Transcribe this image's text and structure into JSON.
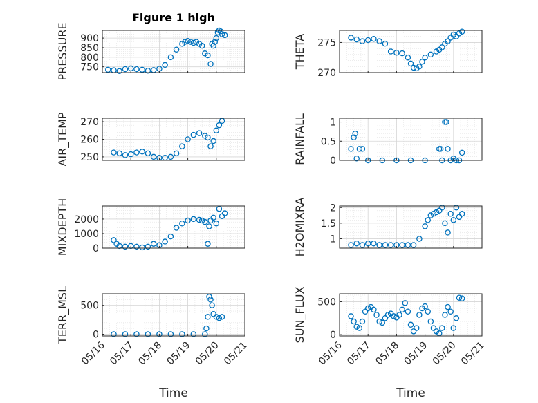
{
  "figure": {
    "title": "Figure 1 high",
    "xlabel": "Time"
  },
  "chart_data": [
    {
      "type": "scatter",
      "ylabel": "PRESSURE",
      "ylim": [
        720,
        940
      ],
      "yticks": [
        750,
        800,
        850,
        900
      ],
      "color": "#0072bd",
      "x": [
        0.2,
        0.4,
        0.6,
        0.8,
        1.0,
        1.2,
        1.4,
        1.6,
        1.8,
        2.0,
        2.2,
        2.4,
        2.6,
        2.8,
        2.9,
        3.0,
        3.1,
        3.2,
        3.3,
        3.4,
        3.5,
        3.6,
        3.7,
        3.8,
        3.85,
        3.9,
        3.95,
        4.0,
        4.05,
        4.1,
        4.15,
        4.2,
        4.3
      ],
      "y": [
        735,
        732,
        728,
        738,
        742,
        738,
        735,
        730,
        733,
        740,
        760,
        800,
        840,
        870,
        880,
        885,
        880,
        875,
        880,
        870,
        860,
        820,
        810,
        765,
        870,
        860,
        880,
        900,
        930,
        940,
        935,
        920,
        915
      ]
    },
    {
      "type": "scatter",
      "ylabel": "THETA",
      "ylim": [
        270,
        277
      ],
      "yticks": [
        270,
        275
      ],
      "color": "#0072bd",
      "x": [
        0.4,
        0.6,
        0.8,
        1.0,
        1.2,
        1.4,
        1.6,
        1.8,
        2.0,
        2.2,
        2.4,
        2.5,
        2.6,
        2.7,
        2.8,
        2.9,
        3.0,
        3.2,
        3.4,
        3.5,
        3.6,
        3.7,
        3.8,
        3.9,
        4.0,
        4.1,
        4.2,
        4.3
      ],
      "y": [
        275.8,
        275.5,
        275.2,
        275.4,
        275.6,
        275.2,
        274.8,
        273.5,
        273.3,
        273.2,
        272.5,
        271.5,
        270.8,
        270.7,
        271.0,
        271.8,
        272.5,
        273.0,
        273.5,
        273.8,
        274.2,
        274.8,
        275.2,
        275.8,
        276.3,
        276.0,
        276.5,
        276.8
      ]
    },
    {
      "type": "scatter",
      "ylabel": "AIR_TEMP",
      "ylim": [
        248,
        272
      ],
      "yticks": [
        250,
        260,
        270
      ],
      "color": "#0072bd",
      "x": [
        0.4,
        0.6,
        0.8,
        1.0,
        1.2,
        1.4,
        1.6,
        1.8,
        2.0,
        2.2,
        2.4,
        2.6,
        2.8,
        3.0,
        3.2,
        3.4,
        3.6,
        3.7,
        3.8,
        3.9,
        4.0,
        4.1,
        4.2
      ],
      "y": [
        252.5,
        252,
        251,
        251.5,
        252.5,
        253,
        252,
        250,
        249.5,
        249.5,
        250,
        252,
        256,
        260,
        262.5,
        263.5,
        262,
        261,
        256,
        259,
        265,
        268,
        270.5
      ]
    },
    {
      "type": "scatter",
      "ylabel": "RAINFALL",
      "ylim": [
        0,
        1.1
      ],
      "yticks": [
        0,
        0.5,
        1
      ],
      "color": "#0072bd",
      "x": [
        0.4,
        0.5,
        0.55,
        0.6,
        0.7,
        0.8,
        1.0,
        1.5,
        2.0,
        2.5,
        3.0,
        3.5,
        3.55,
        3.6,
        3.7,
        3.75,
        3.8,
        3.9,
        4.0,
        4.1,
        4.2,
        4.3
      ],
      "y": [
        0.3,
        0.6,
        0.7,
        0.05,
        0.3,
        0.3,
        0,
        0,
        0,
        0,
        0,
        0.3,
        0.3,
        0,
        1,
        1,
        0.3,
        0,
        0.05,
        0,
        0,
        0.2
      ]
    },
    {
      "type": "scatter",
      "ylabel": "MIXDEPTH",
      "ylim": [
        0,
        2900
      ],
      "yticks": [
        0,
        1000,
        2000
      ],
      "color": "#0072bd",
      "x": [
        0.4,
        0.5,
        0.6,
        0.8,
        1.0,
        1.2,
        1.4,
        1.6,
        1.8,
        2.0,
        2.2,
        2.4,
        2.6,
        2.8,
        3.0,
        3.2,
        3.4,
        3.5,
        3.6,
        3.7,
        3.75,
        3.8,
        3.9,
        4.0,
        4.1,
        4.2,
        4.3
      ],
      "y": [
        550,
        300,
        150,
        100,
        150,
        100,
        50,
        100,
        300,
        200,
        450,
        800,
        1400,
        1700,
        1900,
        2000,
        1950,
        1900,
        1800,
        300,
        1500,
        1900,
        2100,
        1700,
        2700,
        2200,
        2400
      ]
    },
    {
      "type": "scatter",
      "ylabel": "H2OMIXRA",
      "ylim": [
        0.7,
        2.05
      ],
      "yticks": [
        1,
        1.5,
        2
      ],
      "color": "#0072bd",
      "x": [
        0.4,
        0.6,
        0.8,
        1.0,
        1.2,
        1.4,
        1.6,
        1.8,
        2.0,
        2.2,
        2.4,
        2.6,
        2.8,
        3.0,
        3.1,
        3.2,
        3.3,
        3.4,
        3.5,
        3.6,
        3.7,
        3.8,
        3.9,
        4.0,
        4.1,
        4.2,
        4.3
      ],
      "y": [
        0.8,
        0.85,
        0.8,
        0.85,
        0.85,
        0.8,
        0.8,
        0.8,
        0.8,
        0.8,
        0.8,
        0.8,
        1.0,
        1.4,
        1.6,
        1.75,
        1.8,
        1.85,
        1.9,
        2.0,
        1.5,
        1.2,
        1.8,
        1.6,
        2.0,
        1.7,
        1.8
      ]
    },
    {
      "type": "scatter",
      "ylabel": "TERR_MSL",
      "ylim": [
        -30,
        700
      ],
      "yticks": [
        0,
        500
      ],
      "color": "#0072bd",
      "x": [
        0.4,
        0.8,
        1.2,
        1.6,
        2.0,
        2.4,
        2.8,
        3.2,
        3.6,
        3.65,
        3.7,
        3.75,
        3.8,
        3.85,
        3.9,
        4.0,
        4.1,
        4.2
      ],
      "y": [
        0,
        0,
        0,
        0,
        0,
        0,
        0,
        0,
        0,
        100,
        300,
        650,
        600,
        500,
        350,
        300,
        280,
        300
      ]
    },
    {
      "type": "scatter",
      "ylabel": "SUN_FLUX",
      "ylim": [
        -20,
        620
      ],
      "yticks": [
        0,
        500
      ],
      "color": "#0072bd",
      "x": [
        0.4,
        0.5,
        0.6,
        0.7,
        0.8,
        0.9,
        1.0,
        1.1,
        1.2,
        1.3,
        1.4,
        1.5,
        1.6,
        1.7,
        1.8,
        1.9,
        2.0,
        2.1,
        2.2,
        2.3,
        2.4,
        2.5,
        2.6,
        2.7,
        2.8,
        2.9,
        3.0,
        3.1,
        3.2,
        3.3,
        3.4,
        3.5,
        3.6,
        3.7,
        3.8,
        3.9,
        4.0,
        4.1,
        4.2,
        4.3
      ],
      "y": [
        280,
        200,
        120,
        100,
        200,
        350,
        400,
        420,
        380,
        300,
        200,
        180,
        250,
        300,
        320,
        280,
        260,
        300,
        380,
        480,
        350,
        150,
        50,
        100,
        300,
        400,
        430,
        350,
        200,
        100,
        50,
        20,
        100,
        300,
        420,
        350,
        100,
        250,
        560,
        550
      ]
    }
  ],
  "x_axis": {
    "xlim": [
      0,
      5
    ],
    "ticks": [
      0,
      1,
      2,
      3,
      4,
      5
    ],
    "ticklabels": [
      "05/16",
      "05/17",
      "05/18",
      "05/19",
      "05/20",
      "05/21"
    ]
  }
}
